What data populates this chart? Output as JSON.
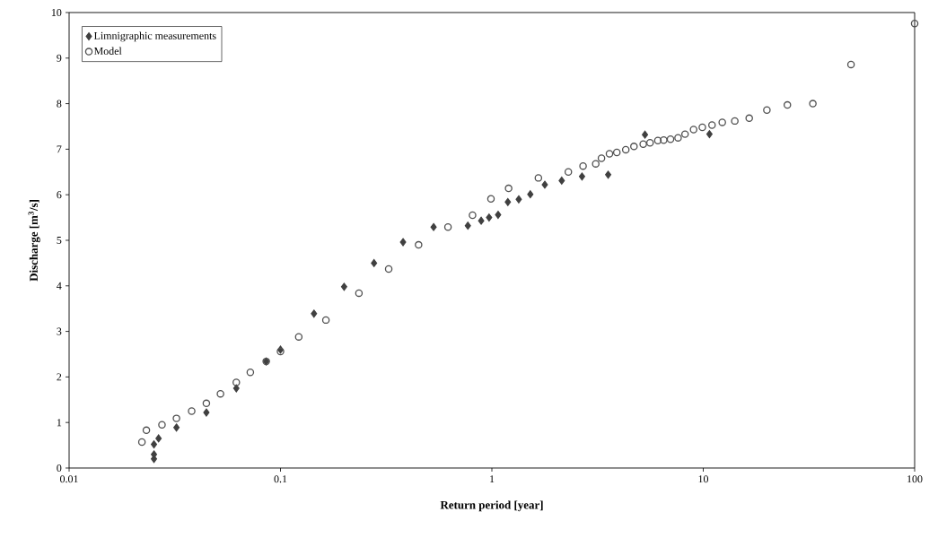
{
  "chart_data": {
    "type": "scatter",
    "xlabel": "Return period [year]",
    "ylabel": "Discharge [m$^{3}$/s]",
    "log": "x",
    "legend": "top left",
    "xlim": [
      0.01,
      100
    ],
    "ylim": [
      0,
      10
    ],
    "xticks": [
      0.01,
      0.1,
      1,
      10,
      100
    ],
    "yticks": [
      0,
      1,
      2,
      3,
      4,
      5,
      6,
      7,
      8,
      9,
      10
    ],
    "series": [
      {
        "name": "Limnigraphic measurements",
        "color": "#404040",
        "marker": "diamond",
        "x": [
          0.0252,
          0.0252,
          0.0252,
          0.0265,
          0.0322,
          0.0446,
          0.0618,
          0.0856,
          0.1,
          0.144,
          0.2,
          0.277,
          0.38,
          0.53,
          0.77,
          0.89,
          0.97,
          1.07,
          1.19,
          1.34,
          1.52,
          1.78,
          2.14,
          2.67,
          3.55,
          5.3,
          10.7
        ],
        "values": [
          0.2,
          0.3,
          0.52,
          0.65,
          0.89,
          1.22,
          1.75,
          2.34,
          2.6,
          3.39,
          3.98,
          4.5,
          4.96,
          5.29,
          5.32,
          5.43,
          5.5,
          5.56,
          5.84,
          5.9,
          6.01,
          6.22,
          6.31,
          6.4,
          6.44,
          7.32,
          7.33
        ]
      },
      {
        "name": "Model",
        "color": "#505050",
        "marker": "circle",
        "x": [
          0.0221,
          0.0232,
          0.0275,
          0.0322,
          0.038,
          0.0446,
          0.052,
          0.0618,
          0.072,
          0.0856,
          0.1,
          0.122,
          0.164,
          0.235,
          0.325,
          0.45,
          0.62,
          0.81,
          0.99,
          1.2,
          1.66,
          2.3,
          2.7,
          3.1,
          3.3,
          3.6,
          3.9,
          4.3,
          4.7,
          5.2,
          5.6,
          6.1,
          6.5,
          7.0,
          7.6,
          8.2,
          9.0,
          9.9,
          11.0,
          12.3,
          14.1,
          16.5,
          20,
          25,
          33,
          50,
          100
        ],
        "values": [
          0.57,
          0.83,
          0.95,
          1.09,
          1.25,
          1.42,
          1.63,
          1.88,
          2.1,
          2.34,
          2.56,
          2.88,
          3.25,
          3.84,
          4.37,
          4.9,
          5.29,
          5.55,
          5.91,
          6.14,
          6.37,
          6.5,
          6.63,
          6.68,
          6.8,
          6.9,
          6.93,
          6.99,
          7.06,
          7.11,
          7.14,
          7.19,
          7.2,
          7.22,
          7.25,
          7.33,
          7.43,
          7.48,
          7.53,
          7.59,
          7.62,
          7.68,
          7.86,
          7.97,
          8.0,
          8.86,
          9.76
        ]
      }
    ]
  }
}
